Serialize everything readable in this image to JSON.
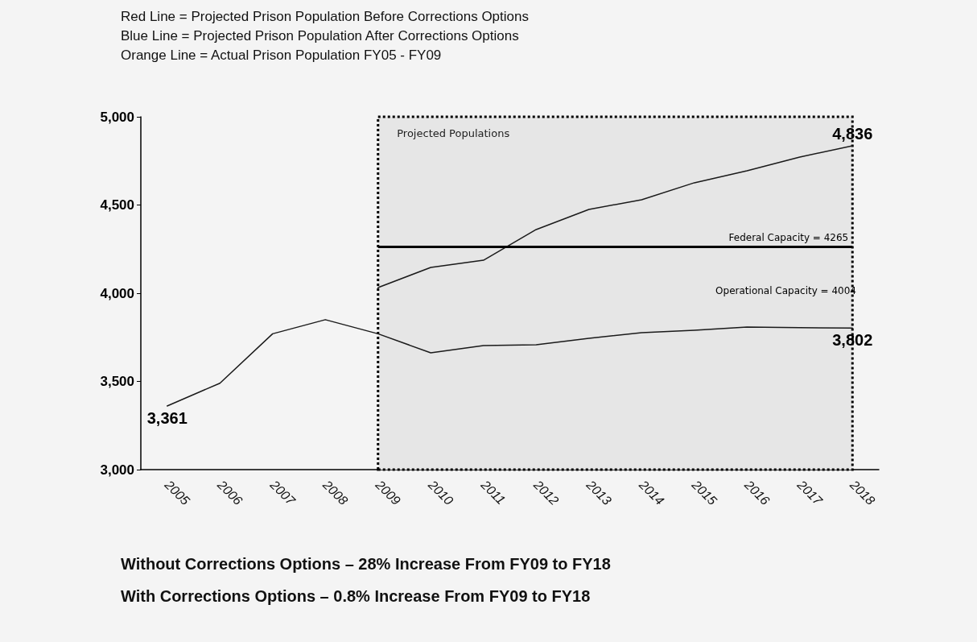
{
  "chart_data": {
    "type": "line",
    "categories": [
      "2005",
      "2006",
      "2007",
      "2008",
      "2009",
      "2010",
      "2011",
      "2012",
      "2013",
      "2014",
      "2015",
      "2016",
      "2017",
      "2018"
    ],
    "series": [
      {
        "color": "#1a1a1a",
        "values": [
          3361,
          3490,
          3770,
          3850,
          3770,
          3662,
          3703,
          3708,
          3744,
          3776,
          3790,
          3808,
          3805,
          3802
        ],
        "value_labels": [
          "3,361",
          null,
          null,
          null,
          null,
          null,
          null,
          null,
          null,
          null,
          null,
          null,
          null,
          "3,802"
        ]
      },
      {
        "color": "#1a1a1a",
        "values": [
          null,
          null,
          null,
          null,
          4032,
          4146,
          4187,
          4361,
          4475,
          4530,
          4626,
          4694,
          4772,
          4836
        ],
        "value_labels": [
          null,
          null,
          null,
          null,
          null,
          null,
          null,
          null,
          null,
          null,
          null,
          null,
          null,
          "4,836"
        ]
      }
    ],
    "ylim": [
      3000,
      5000
    ],
    "yticks": [
      {
        "value": 3000,
        "label": "3,000"
      },
      {
        "value": 3500,
        "label": "3,500"
      },
      {
        "value": 4000,
        "label": "4,000"
      },
      {
        "value": 4500,
        "label": "4,500"
      },
      {
        "value": 5000,
        "label": "5,000"
      }
    ],
    "grid": false,
    "marker": "none",
    "line_style": "solid",
    "ref_lines": [
      {
        "axis": "y",
        "value": 4265,
        "label": "Federal Capacity = 4265",
        "color": "#000000"
      }
    ],
    "bands": [
      {
        "axis": "x",
        "from": "2009",
        "to": "2018",
        "label": "Projected Populations",
        "color": "#e6e6e6"
      }
    ],
    "annotations": [
      "Red Line = Projected Prison Population Before Corrections Options",
      "Blue Line = Projected Prison Population After Corrections Options",
      "Orange Line = Actual Prison Population FY05 - FY09",
      "Without Corrections Options – 28% Increase From FY09 to FY18",
      "With Corrections Options – 0.8% Increase From FY09 to FY18",
      "Operational Capacity = 4004"
    ]
  }
}
